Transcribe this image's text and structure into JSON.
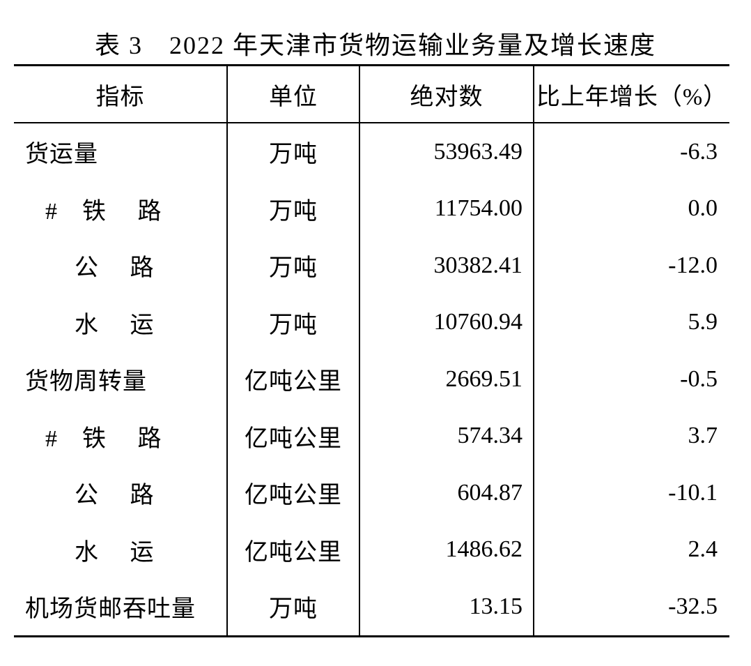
{
  "title": "表 3　2022 年天津市货物运输业务量及增长速度",
  "colors": {
    "background": "#ffffff",
    "text": "#000000",
    "border": "#000000"
  },
  "table": {
    "headers": [
      "指标",
      "单位",
      "绝对数",
      "比上年增长（%）"
    ],
    "rows": [
      {
        "indicator": "货运量",
        "unit": "万吨",
        "value": "53963.49",
        "growth": "-6.3"
      },
      {
        "indicator": "#　铁　 路",
        "unit": "万吨",
        "value": "11754.00",
        "growth": "0.0"
      },
      {
        "indicator": "公　 路",
        "unit": "万吨",
        "value": "30382.41",
        "growth": "-12.0"
      },
      {
        "indicator": "水　 运",
        "unit": "万吨",
        "value": "10760.94",
        "growth": "5.9"
      },
      {
        "indicator": "货物周转量",
        "unit": "亿吨公里",
        "value": "2669.51",
        "growth": "-0.5"
      },
      {
        "indicator": "#　铁　 路",
        "unit": "亿吨公里",
        "value": "574.34",
        "growth": "3.7"
      },
      {
        "indicator": "公　 路",
        "unit": "亿吨公里",
        "value": "604.87",
        "growth": "-10.1"
      },
      {
        "indicator": "水　 运",
        "unit": "亿吨公里",
        "value": "1486.62",
        "growth": "2.4"
      },
      {
        "indicator": "机场货邮吞吐量",
        "unit": "万吨",
        "value": "13.15",
        "growth": "-32.5"
      }
    ]
  }
}
